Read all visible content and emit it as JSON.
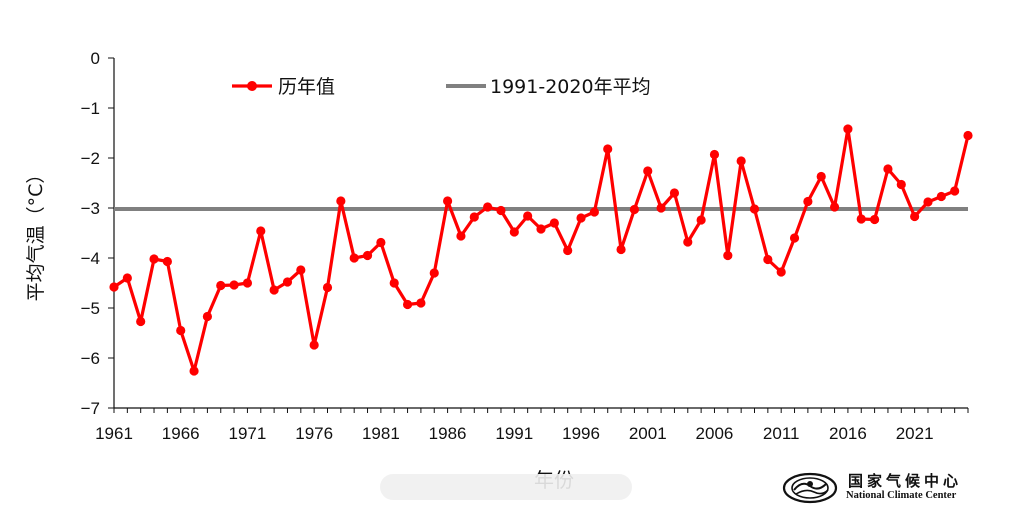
{
  "chart_data": {
    "type": "line",
    "title": "",
    "xlabel": "年份",
    "ylabel": "平均气温（°C）",
    "xlim": [
      1961,
      2025
    ],
    "ylim": [
      -7,
      0
    ],
    "yticks": [
      0,
      -1,
      -2,
      -3,
      -4,
      -5,
      -6,
      -7
    ],
    "xticks": [
      1961,
      1966,
      1971,
      1976,
      1981,
      1986,
      1991,
      1996,
      2001,
      2006,
      2011,
      2016,
      2021
    ],
    "grid": false,
    "legend": "top-left",
    "series": [
      {
        "name": "历年值",
        "color": "#ff0000",
        "x": [
          1961,
          1962,
          1963,
          1964,
          1965,
          1966,
          1967,
          1968,
          1969,
          1970,
          1971,
          1972,
          1973,
          1974,
          1975,
          1976,
          1977,
          1978,
          1979,
          1980,
          1981,
          1982,
          1983,
          1984,
          1985,
          1986,
          1987,
          1988,
          1989,
          1990,
          1991,
          1992,
          1993,
          1994,
          1995,
          1996,
          1997,
          1998,
          1999,
          2000,
          2001,
          2002,
          2003,
          2004,
          2005,
          2006,
          2007,
          2008,
          2009,
          2010,
          2011,
          2012,
          2013,
          2014,
          2015,
          2016,
          2017,
          2018,
          2019,
          2020,
          2021,
          2022,
          2023,
          2024,
          2025
        ],
        "values": [
          -4.58,
          -4.4,
          -5.27,
          -4.02,
          -4.07,
          -5.45,
          -6.26,
          -5.17,
          -4.55,
          -4.54,
          -4.5,
          -3.46,
          -4.64,
          -4.48,
          -4.24,
          -5.74,
          -4.59,
          -2.86,
          -4.0,
          -3.95,
          -3.69,
          -4.5,
          -4.93,
          -4.9,
          -4.3,
          -2.86,
          -3.56,
          -3.18,
          -2.98,
          -3.05,
          -3.48,
          -3.16,
          -3.42,
          -3.3,
          -3.85,
          -3.2,
          -3.08,
          -1.82,
          -3.83,
          -3.03,
          -2.26,
          -3.0,
          -2.7,
          -3.68,
          -3.24,
          -1.93,
          -3.95,
          -2.06,
          -3.02,
          -4.03,
          -4.28,
          -3.6,
          -2.87,
          -2.37,
          -2.98,
          -1.42,
          -3.22,
          -3.23,
          -2.22,
          -2.53,
          -3.17,
          -2.88,
          -2.77,
          -2.66,
          -1.55
        ]
      },
      {
        "name": "1991-2020年平均",
        "color": "#808080",
        "x": [
          1961,
          2025
        ],
        "values": [
          -3.02,
          -3.02
        ]
      }
    ]
  },
  "logo": {
    "cn": "国家气候中心",
    "en": "National Climate Center"
  }
}
